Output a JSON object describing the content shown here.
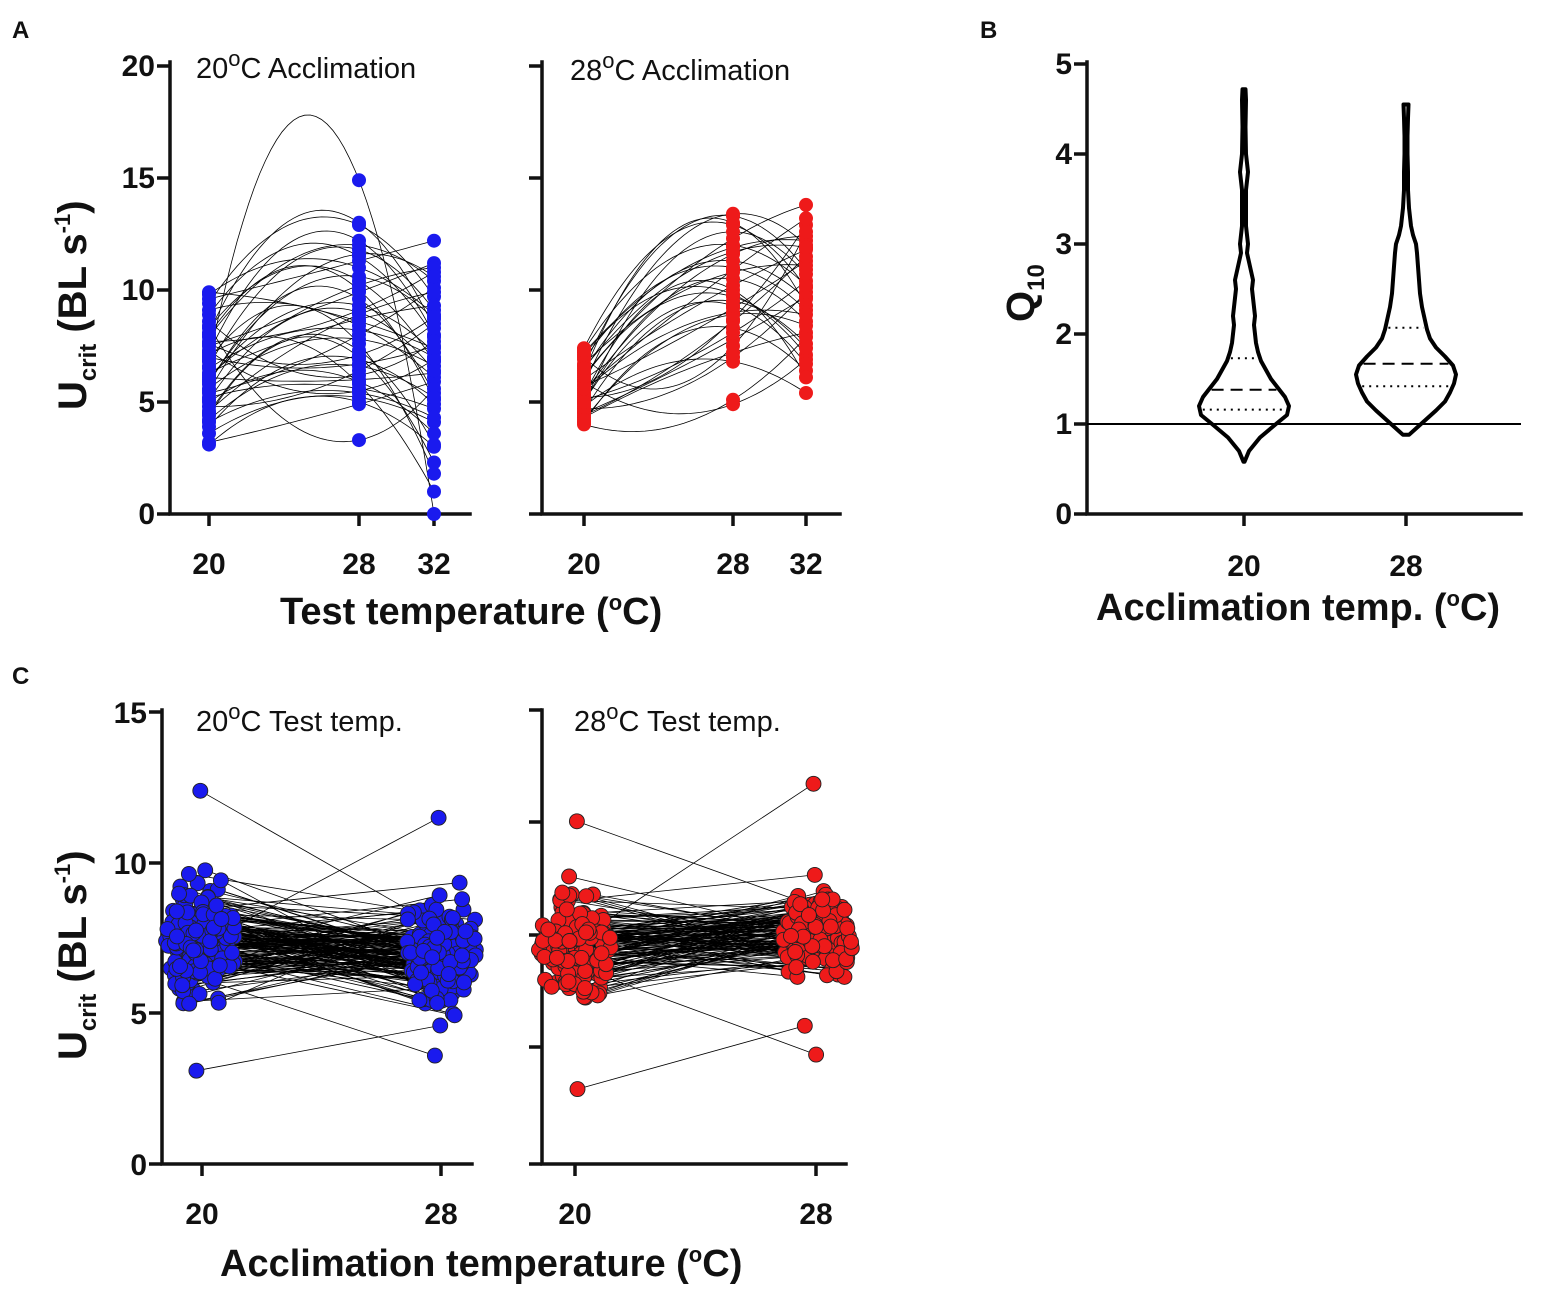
{
  "panels": {
    "A": {
      "tag": "A",
      "ylabel_main": "U",
      "ylabel_sub": "crit",
      "ylabel_unit": " (BL s",
      "ylabel_exp": "-1",
      "ylabel_close": ")",
      "xlabel_pre": "Test temperature (",
      "xlabel_sup": "o",
      "xlabel_post": "C)",
      "y_ticks": [
        "0",
        "5",
        "10",
        "15",
        "20"
      ],
      "left": {
        "title_pre": "20",
        "title_sup": "o",
        "title_post": "C Acclimation",
        "x_ticks": [
          "20",
          "28",
          "32"
        ]
      },
      "right": {
        "title_pre": "28",
        "title_sup": "o",
        "title_post": "C Acclimation",
        "x_ticks": [
          "20",
          "28",
          "32"
        ]
      }
    },
    "B": {
      "tag": "B",
      "ylabel_main": "Q",
      "ylabel_sub": "10",
      "xlabel_pre": "Acclimation temp. (",
      "xlabel_sup": "o",
      "xlabel_post": "C)",
      "y_ticks": [
        "0",
        "1",
        "2",
        "3",
        "4",
        "5"
      ],
      "x_ticks": [
        "20",
        "28"
      ]
    },
    "C": {
      "tag": "C",
      "ylabel_main": "U",
      "ylabel_sub": "crit",
      "ylabel_unit": " (BL s",
      "ylabel_exp": "-1",
      "ylabel_close": ")",
      "xlabel_pre": "Acclimation temperature (",
      "xlabel_sup": "o",
      "xlabel_post": "C)",
      "y_ticks": [
        "0",
        "5",
        "10",
        "15"
      ],
      "left": {
        "title_pre": "20",
        "title_sup": "o",
        "title_post": "C Test temp.",
        "x_ticks": [
          "20",
          "28"
        ]
      },
      "right": {
        "title_pre": "28",
        "title_sup": "o",
        "title_post": "C Test temp.",
        "x_ticks": [
          "20",
          "28"
        ]
      }
    }
  },
  "chart_data": [
    {
      "panel": "A",
      "type": "scatter",
      "title": "20°C Acclimation / 28°C Acclimation",
      "xlabel": "Test temperature (°C)",
      "ylabel": "Ucrit (BL s-1)",
      "ylim": [
        0,
        20
      ],
      "x_categories": [
        20,
        28,
        32
      ],
      "series": [
        {
          "name": "20°C Acclimation",
          "color": "#1a1aee",
          "individuals": [
            [
              6.5,
              8.2,
              7.0
            ],
            [
              5.8,
              9.6,
              5.4
            ],
            [
              7.2,
              12.2,
              8.0
            ],
            [
              4.5,
              7.3,
              3.1
            ],
            [
              8.3,
              10.4,
              6.8
            ],
            [
              6.1,
              6.0,
              6.3
            ],
            [
              9.8,
              11.0,
              8.9
            ],
            [
              5.2,
              5.6,
              4.7
            ],
            [
              7.7,
              9.1,
              10.8
            ],
            [
              3.2,
              4.9,
              5.9
            ],
            [
              6.8,
              14.9,
              0.0
            ],
            [
              9.4,
              12.9,
              9.7
            ],
            [
              4.1,
              5.4,
              4.3
            ],
            [
              8.9,
              11.5,
              7.9
            ],
            [
              5.6,
              7.8,
              6.6
            ],
            [
              7.0,
              6.7,
              7.5
            ],
            [
              3.6,
              5.2,
              4.1
            ],
            [
              6.3,
              8.7,
              9.3
            ],
            [
              8.0,
              10.0,
              5.1
            ],
            [
              4.8,
              6.4,
              8.5
            ],
            [
              7.5,
              9.9,
              11.2
            ],
            [
              5.0,
              5.9,
              3.6
            ],
            [
              9.1,
              8.4,
              6.1
            ],
            [
              6.6,
              11.8,
              9.1
            ],
            [
              4.4,
              7.0,
              2.3
            ],
            [
              8.6,
              6.2,
              7.7
            ],
            [
              5.4,
              8.0,
              10.1
            ],
            [
              7.9,
              12.0,
              10.4
            ],
            [
              3.9,
              6.9,
              4.9
            ],
            [
              6.0,
              9.3,
              7.2
            ],
            [
              8.4,
              3.3,
              5.6
            ],
            [
              5.9,
              10.6,
              8.7
            ],
            [
              7.3,
              5.5,
              6.9
            ],
            [
              4.6,
              8.9,
              9.9
            ],
            [
              9.6,
              11.3,
              12.2
            ],
            [
              6.9,
              7.6,
              1.8
            ],
            [
              5.1,
              9.0,
              6.4
            ],
            [
              8.1,
              13.0,
              8.3
            ],
            [
              4.2,
              6.6,
              5.2
            ],
            [
              7.1,
              5.8,
              1.0
            ],
            [
              6.2,
              10.2,
              11.0
            ],
            [
              9.9,
              8.6,
              7.4
            ],
            [
              3.1,
              5.0,
              3.0
            ],
            [
              7.6,
              7.1,
              8.8
            ],
            [
              5.5,
              11.6,
              10.6
            ]
          ]
        },
        {
          "name": "28°C Acclimation",
          "color": "#ee1a1a",
          "individuals": [
            [
              5.0,
              10.5,
              8.6
            ],
            [
              6.2,
              12.3,
              13.8
            ],
            [
              4.5,
              7.8,
              9.7
            ],
            [
              7.1,
              9.8,
              7.1
            ],
            [
              5.4,
              11.6,
              12.4
            ],
            [
              4.1,
              8.3,
              6.4
            ],
            [
              6.6,
              13.3,
              10.9
            ],
            [
              5.7,
              9.2,
              11.3
            ],
            [
              4.8,
              6.8,
              5.4
            ],
            [
              6.9,
              11.0,
              9.1
            ],
            [
              5.2,
              8.7,
              12.9
            ],
            [
              7.4,
              12.9,
              10.1
            ],
            [
              4.3,
              7.2,
              8.1
            ],
            [
              6.0,
              10.2,
              11.8
            ],
            [
              5.9,
              4.9,
              6.9
            ],
            [
              4.6,
              9.5,
              7.6
            ],
            [
              7.2,
              11.9,
              12.2
            ],
            [
              5.1,
              8.1,
              10.4
            ],
            [
              6.3,
              13.0,
              9.3
            ],
            [
              4.0,
              5.1,
              7.9
            ],
            [
              6.7,
              10.8,
              11.1
            ],
            [
              5.5,
              9.0,
              8.9
            ],
            [
              4.9,
              12.6,
              10.7
            ],
            [
              7.0,
              7.5,
              12.6
            ],
            [
              5.3,
              10.0,
              6.1
            ],
            [
              6.4,
              11.3,
              9.6
            ],
            [
              4.4,
              8.6,
              11.5
            ],
            [
              5.8,
              13.4,
              12.0
            ],
            [
              6.1,
              9.7,
              7.4
            ],
            [
              4.7,
              7.0,
              9.9
            ],
            [
              7.3,
              12.0,
              10.2
            ],
            [
              5.6,
              10.9,
              13.2
            ],
            [
              4.2,
              8.9,
              8.4
            ],
            [
              6.5,
              11.7,
              11.9
            ],
            [
              5.0,
              9.3,
              6.7
            ]
          ]
        }
      ]
    },
    {
      "panel": "B",
      "type": "violin",
      "xlabel": "Acclimation temp. (°C)",
      "ylabel": "Q10",
      "ylim": [
        0,
        5
      ],
      "reference_line": 1,
      "groups": [
        {
          "category": "20",
          "min": 0.58,
          "max": 4.72,
          "q1": 1.16,
          "median": 1.38,
          "q3": 1.73,
          "density_profile": [
            [
              0.58,
              0.5
            ],
            [
              0.7,
              5
            ],
            [
              0.85,
              16
            ],
            [
              1.0,
              32
            ],
            [
              1.1,
              43
            ],
            [
              1.2,
              45
            ],
            [
              1.3,
              41
            ],
            [
              1.4,
              34
            ],
            [
              1.5,
              27
            ],
            [
              1.6,
              22
            ],
            [
              1.7,
              17
            ],
            [
              1.8,
              14
            ],
            [
              1.9,
              12
            ],
            [
              2.0,
              11
            ],
            [
              2.1,
              10
            ],
            [
              2.2,
              11
            ],
            [
              2.3,
              10
            ],
            [
              2.4,
              9
            ],
            [
              2.5,
              8
            ],
            [
              2.6,
              9
            ],
            [
              2.7,
              7
            ],
            [
              2.8,
              5
            ],
            [
              2.9,
              3
            ],
            [
              3.0,
              4
            ],
            [
              3.2,
              2
            ],
            [
              3.4,
              2
            ],
            [
              3.6,
              2
            ],
            [
              3.8,
              4
            ],
            [
              4.0,
              2
            ],
            [
              4.3,
              1.5
            ],
            [
              4.6,
              2
            ],
            [
              4.72,
              1.5
            ]
          ]
        },
        {
          "category": "28",
          "min": 0.88,
          "max": 4.55,
          "q1": 1.42,
          "median": 1.67,
          "q3": 2.07,
          "density_profile": [
            [
              0.88,
              3
            ],
            [
              0.95,
              10
            ],
            [
              1.05,
              20
            ],
            [
              1.15,
              30
            ],
            [
              1.25,
              39
            ],
            [
              1.35,
              44
            ],
            [
              1.45,
              48
            ],
            [
              1.55,
              50
            ],
            [
              1.65,
              47
            ],
            [
              1.75,
              39
            ],
            [
              1.85,
              30
            ],
            [
              1.95,
              24
            ],
            [
              2.05,
              21
            ],
            [
              2.15,
              19
            ],
            [
              2.3,
              16
            ],
            [
              2.45,
              14
            ],
            [
              2.6,
              13
            ],
            [
              2.75,
              12
            ],
            [
              2.9,
              11
            ],
            [
              3.0,
              10
            ],
            [
              3.1,
              7
            ],
            [
              3.2,
              5
            ],
            [
              3.4,
              3
            ],
            [
              3.6,
              2
            ],
            [
              3.8,
              2
            ],
            [
              4.0,
              1.5
            ],
            [
              4.2,
              1.5
            ],
            [
              4.4,
              2
            ],
            [
              4.55,
              2.5
            ]
          ]
        }
      ]
    },
    {
      "panel": "C",
      "type": "scatter",
      "title": "20°C Test temp. / 28°C Test temp.",
      "xlabel": "Acclimation temperature (°C)",
      "ylabel": "Ucrit (BL s-1)",
      "ylim": [
        0,
        15
      ],
      "x_categories": [
        20,
        28
      ],
      "series": [
        {
          "name": "20°C Test temp.",
          "color": "#1a1aee",
          "n": 180,
          "acc20_range": [
            3.1,
            12.4
          ],
          "acc28_range": [
            3.6,
            11.5
          ],
          "acc20_mean": 7.5,
          "acc28_mean": 7.0
        },
        {
          "name": "28°C Test temp.",
          "color": "#ee1a1a",
          "n": 150,
          "acc20_range": [
            2.6,
            11.9
          ],
          "acc28_range": [
            3.8,
            13.2
          ],
          "acc20_mean": 7.6,
          "acc28_mean": 8.0
        }
      ]
    }
  ]
}
